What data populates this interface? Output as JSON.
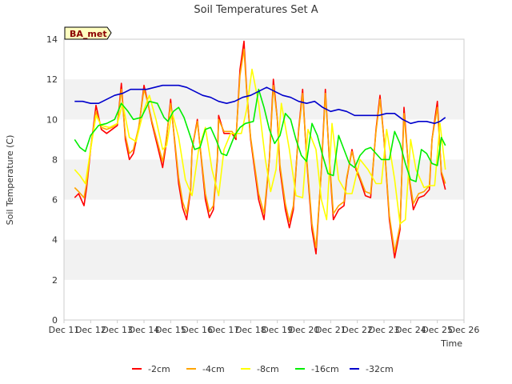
{
  "chart_data": {
    "type": "line",
    "title": "Soil Temperatures Set A",
    "xlabel": "Time",
    "ylabel": "Soil Temperature (C)",
    "badge": "BA_met",
    "ylim": [
      0,
      14
    ],
    "xlim": [
      11,
      26
    ],
    "yticks": [
      "0",
      "2",
      "4",
      "6",
      "8",
      "10",
      "12",
      "14"
    ],
    "xticks": [
      "Dec 11",
      "Dec 12",
      "Dec 13",
      "Dec 14",
      "Dec 15",
      "Dec 16",
      "Dec 17",
      "Dec 18",
      "Dec 19",
      "Dec 20",
      "Dec 21",
      "Dec 22",
      "Dec 23",
      "Dec 24",
      "Dec 25",
      "Dec 26"
    ],
    "grid": "horizontal bands",
    "legend_position": "bottom",
    "colors": {
      "band": "#f2f2f2",
      "axis": "#cccccc",
      "badge_fill": "#ffffc0"
    },
    "series": [
      {
        "name": "-2cm",
        "color": "#ff0000",
        "x": [
          11.4,
          11.55,
          11.75,
          11.85,
          12.0,
          12.2,
          12.4,
          12.6,
          12.8,
          13.0,
          13.15,
          13.3,
          13.45,
          13.6,
          13.8,
          14.0,
          14.15,
          14.3,
          14.5,
          14.7,
          14.8,
          15.0,
          15.15,
          15.3,
          15.45,
          15.6,
          15.75,
          15.8,
          16.0,
          16.15,
          16.3,
          16.45,
          16.6,
          16.75,
          16.8,
          17.0,
          17.15,
          17.3,
          17.45,
          17.6,
          17.75,
          17.85,
          18.0,
          18.15,
          18.3,
          18.5,
          18.7,
          18.85,
          19.0,
          19.1,
          19.3,
          19.45,
          19.6,
          19.8,
          19.95,
          20.1,
          20.3,
          20.45,
          20.65,
          20.8,
          20.95,
          21.1,
          21.3,
          21.5,
          21.6,
          21.8,
          21.95,
          22.1,
          22.3,
          22.5,
          22.7,
          22.85,
          23.0,
          23.2,
          23.4,
          23.6,
          23.75,
          23.95,
          24.1,
          24.3,
          24.5,
          24.7,
          24.8,
          25.0,
          25.15,
          25.3
        ],
        "values": [
          6.1,
          6.3,
          5.7,
          6.6,
          8.5,
          10.7,
          9.5,
          9.3,
          9.5,
          9.7,
          11.8,
          9.0,
          8.0,
          8.3,
          9.5,
          11.7,
          10.8,
          9.8,
          8.7,
          7.6,
          8.5,
          11.0,
          8.9,
          6.8,
          5.6,
          5.0,
          6.5,
          8.5,
          10.0,
          8.0,
          6.0,
          5.1,
          5.5,
          8.0,
          10.2,
          9.3,
          9.3,
          9.3,
          9.0,
          12.5,
          13.9,
          11.5,
          9.0,
          7.5,
          6.0,
          5.0,
          8.0,
          12.0,
          10.0,
          7.5,
          5.5,
          4.6,
          5.5,
          9.5,
          11.5,
          8.0,
          4.5,
          3.3,
          7.5,
          11.5,
          8.0,
          5.0,
          5.5,
          5.7,
          7.0,
          8.5,
          7.5,
          7.0,
          6.2,
          6.1,
          9.5,
          11.2,
          9.0,
          5.0,
          3.1,
          4.5,
          10.6,
          7.0,
          5.5,
          6.1,
          6.2,
          6.5,
          9.0,
          10.9,
          7.3,
          6.5
        ]
      },
      {
        "name": "-4cm",
        "color": "#ffa500",
        "x": [
          11.4,
          11.55,
          11.75,
          11.85,
          12.0,
          12.2,
          12.4,
          12.6,
          12.8,
          13.0,
          13.15,
          13.3,
          13.45,
          13.6,
          13.8,
          14.0,
          14.15,
          14.3,
          14.5,
          14.7,
          14.8,
          15.0,
          15.15,
          15.3,
          15.45,
          15.6,
          15.75,
          15.8,
          16.0,
          16.15,
          16.3,
          16.45,
          16.6,
          16.75,
          16.8,
          17.0,
          17.15,
          17.3,
          17.45,
          17.6,
          17.75,
          17.85,
          18.0,
          18.15,
          18.3,
          18.5,
          18.7,
          18.85,
          19.0,
          19.1,
          19.3,
          19.45,
          19.6,
          19.8,
          19.95,
          20.1,
          20.3,
          20.45,
          20.65,
          20.8,
          20.95,
          21.1,
          21.3,
          21.5,
          21.6,
          21.8,
          21.95,
          22.1,
          22.3,
          22.5,
          22.7,
          22.85,
          23.0,
          23.2,
          23.4,
          23.6,
          23.75,
          23.95,
          24.1,
          24.3,
          24.5,
          24.7,
          24.8,
          25.0,
          25.15,
          25.3
        ],
        "values": [
          6.6,
          6.4,
          6.1,
          6.8,
          8.6,
          10.4,
          9.6,
          9.5,
          9.6,
          9.8,
          11.5,
          9.2,
          8.3,
          8.5,
          9.6,
          11.5,
          10.8,
          9.9,
          8.9,
          7.9,
          8.7,
          10.8,
          9.0,
          7.1,
          5.9,
          5.3,
          6.6,
          8.5,
          9.9,
          8.1,
          6.3,
          5.4,
          5.7,
          8.1,
          10.0,
          9.4,
          9.4,
          9.4,
          9.1,
          12.2,
          13.5,
          11.4,
          9.1,
          7.7,
          6.3,
          5.3,
          8.0,
          11.7,
          10.0,
          7.7,
          5.8,
          4.9,
          5.7,
          9.4,
          11.3,
          8.1,
          4.8,
          3.6,
          7.4,
          11.3,
          8.1,
          5.3,
          5.7,
          5.9,
          7.1,
          8.4,
          7.6,
          7.1,
          6.4,
          6.3,
          9.4,
          11.0,
          9.0,
          5.2,
          3.4,
          4.7,
          10.3,
          7.1,
          5.8,
          6.3,
          6.4,
          6.7,
          9.0,
          10.6,
          7.4,
          6.8
        ]
      },
      {
        "name": "-8cm",
        "color": "#ffff00",
        "x": [
          11.4,
          11.6,
          11.8,
          12.0,
          12.2,
          12.4,
          12.7,
          13.0,
          13.2,
          13.45,
          13.7,
          14.0,
          14.2,
          14.45,
          14.7,
          14.85,
          15.05,
          15.3,
          15.55,
          15.8,
          16.05,
          16.3,
          16.55,
          16.8,
          17.0,
          17.25,
          17.5,
          17.65,
          17.85,
          18.05,
          18.3,
          18.55,
          18.75,
          18.95,
          19.15,
          19.45,
          19.7,
          19.95,
          20.15,
          20.45,
          20.65,
          20.85,
          21.05,
          21.3,
          21.6,
          21.8,
          22.1,
          22.4,
          22.7,
          22.9,
          23.1,
          23.4,
          23.6,
          23.8,
          24.0,
          24.2,
          24.5,
          24.7,
          24.9,
          25.1,
          25.3
        ],
        "values": [
          7.5,
          7.2,
          6.8,
          8.5,
          10.2,
          9.7,
          9.6,
          9.8,
          10.8,
          9.1,
          8.9,
          10.5,
          11.2,
          10.0,
          8.5,
          8.7,
          10.4,
          9.1,
          7.0,
          6.2,
          8.5,
          9.6,
          7.5,
          6.2,
          8.5,
          9.3,
          9.3,
          9.3,
          10.5,
          12.5,
          10.8,
          8.0,
          6.4,
          7.5,
          10.8,
          8.5,
          6.2,
          6.1,
          9.5,
          8.5,
          6.0,
          5.0,
          9.8,
          7.0,
          6.3,
          6.3,
          8.0,
          7.5,
          6.8,
          6.8,
          9.5,
          7.0,
          4.8,
          5.0,
          9.0,
          7.5,
          6.6,
          6.7,
          6.7,
          9.8,
          7.5
        ]
      },
      {
        "name": "-16cm",
        "color": "#00ee00",
        "x": [
          11.4,
          11.6,
          11.8,
          12.0,
          12.3,
          12.6,
          12.9,
          13.15,
          13.4,
          13.6,
          13.9,
          14.2,
          14.5,
          14.75,
          14.9,
          15.1,
          15.3,
          15.5,
          15.7,
          15.9,
          16.1,
          16.3,
          16.5,
          16.7,
          16.9,
          17.1,
          17.4,
          17.6,
          17.8,
          18.1,
          18.3,
          18.5,
          18.7,
          18.9,
          19.1,
          19.3,
          19.5,
          19.7,
          19.9,
          20.1,
          20.3,
          20.5,
          20.7,
          20.9,
          21.1,
          21.3,
          21.5,
          21.7,
          21.9,
          22.1,
          22.3,
          22.5,
          22.7,
          22.9,
          23.2,
          23.4,
          23.6,
          23.8,
          24.0,
          24.2,
          24.4,
          24.6,
          24.8,
          25.0,
          25.15,
          25.3
        ],
        "values": [
          9.0,
          8.6,
          8.4,
          9.2,
          9.7,
          9.8,
          10.0,
          10.8,
          10.4,
          10.0,
          10.1,
          10.9,
          10.8,
          10.1,
          9.9,
          10.4,
          10.6,
          10.1,
          9.3,
          8.5,
          8.6,
          9.5,
          9.6,
          9.0,
          8.3,
          8.2,
          9.2,
          9.6,
          9.8,
          9.9,
          11.5,
          10.6,
          9.5,
          8.8,
          9.2,
          10.3,
          10.0,
          9.0,
          8.2,
          7.9,
          9.8,
          9.2,
          8.2,
          7.3,
          7.2,
          9.2,
          8.5,
          7.8,
          7.6,
          8.2,
          8.5,
          8.6,
          8.3,
          8.0,
          8.0,
          9.4,
          8.8,
          7.8,
          7.0,
          6.9,
          8.5,
          8.3,
          7.8,
          7.7,
          9.1,
          8.7
        ]
      },
      {
        "name": "-32cm",
        "color": "#0000cc",
        "x": [
          11.4,
          11.7,
          12.0,
          12.3,
          12.6,
          12.9,
          13.2,
          13.5,
          13.8,
          14.1,
          14.4,
          14.7,
          15.0,
          15.3,
          15.6,
          15.9,
          16.2,
          16.5,
          16.8,
          17.1,
          17.4,
          17.7,
          18.0,
          18.3,
          18.6,
          18.9,
          19.2,
          19.5,
          19.8,
          20.1,
          20.4,
          20.7,
          21.0,
          21.3,
          21.6,
          21.9,
          22.2,
          22.5,
          22.8,
          23.1,
          23.4,
          23.7,
          24.0,
          24.3,
          24.6,
          24.9,
          25.1,
          25.3
        ],
        "values": [
          10.9,
          10.9,
          10.8,
          10.8,
          11.0,
          11.2,
          11.3,
          11.5,
          11.5,
          11.5,
          11.6,
          11.7,
          11.7,
          11.7,
          11.6,
          11.4,
          11.2,
          11.1,
          10.9,
          10.8,
          10.9,
          11.1,
          11.2,
          11.4,
          11.6,
          11.4,
          11.2,
          11.1,
          10.9,
          10.8,
          10.9,
          10.6,
          10.4,
          10.5,
          10.4,
          10.2,
          10.2,
          10.2,
          10.2,
          10.3,
          10.3,
          10.0,
          9.8,
          9.9,
          9.9,
          9.8,
          9.9,
          10.1
        ]
      }
    ]
  }
}
